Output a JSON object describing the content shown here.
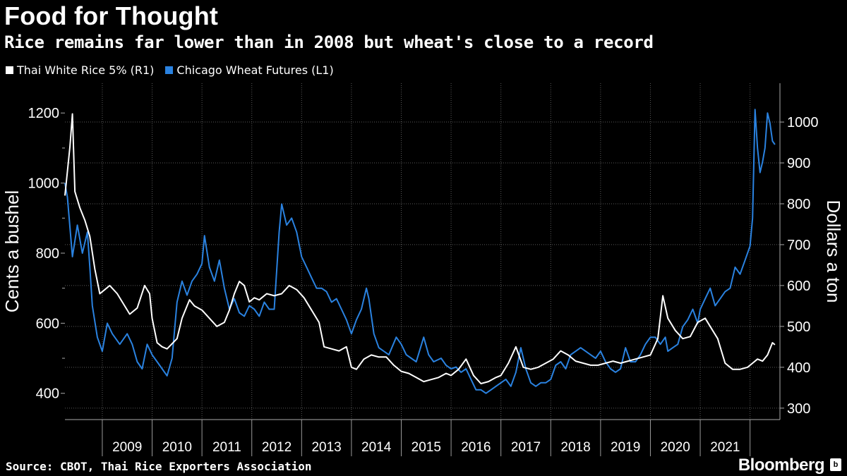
{
  "header": {
    "title": "Food for Thought",
    "subtitle": "Rice remains far lower than in 2008 but wheat's close to a record"
  },
  "footer": {
    "source": "Source: CBOT, Thai Rice Exporters Association",
    "brand": "Bloomberg"
  },
  "colors": {
    "background": "#000000",
    "rice": "#ffffff",
    "wheat": "#2a82e0",
    "grid": "#5a5a5a"
  },
  "chart_data": {
    "type": "line",
    "title": "Food for Thought",
    "subtitle": "Rice remains far lower than in 2008 but wheat's close to a record",
    "x_domain": [
      2008.25,
      2022.6
    ],
    "x_ticks": [
      "2009",
      "2010",
      "2011",
      "2012",
      "2013",
      "2014",
      "2015",
      "2016",
      "2017",
      "2018",
      "2019",
      "2020",
      "2021"
    ],
    "left_axis": {
      "label": "Cents a bushel",
      "range": [
        325,
        1285
      ],
      "ticks": [
        400,
        600,
        800,
        1000,
        1200
      ]
    },
    "right_axis": {
      "label": "Dollars a ton",
      "range": [
        272,
        1095
      ],
      "ticks": [
        300,
        400,
        500,
        600,
        700,
        800,
        900,
        1000
      ]
    },
    "legend": [
      {
        "name": "Thai White Rice 5% (R1)",
        "color": "#ffffff"
      },
      {
        "name": "Chicago Wheat Futures (L1)",
        "color": "#2a82e0"
      }
    ],
    "series": [
      {
        "name": "Thai White Rice 5% (R1)",
        "axis": "right",
        "color": "#ffffff",
        "points": [
          [
            2008.25,
            820
          ],
          [
            2008.35,
            940
          ],
          [
            2008.4,
            1020
          ],
          [
            2008.45,
            830
          ],
          [
            2008.55,
            790
          ],
          [
            2008.65,
            760
          ],
          [
            2008.75,
            720
          ],
          [
            2008.85,
            640
          ],
          [
            2008.95,
            580
          ],
          [
            2009.05,
            590
          ],
          [
            2009.15,
            600
          ],
          [
            2009.3,
            580
          ],
          [
            2009.45,
            550
          ],
          [
            2009.55,
            530
          ],
          [
            2009.7,
            545
          ],
          [
            2009.85,
            600
          ],
          [
            2009.95,
            580
          ],
          [
            2010.0,
            520
          ],
          [
            2010.1,
            460
          ],
          [
            2010.2,
            450
          ],
          [
            2010.3,
            445
          ],
          [
            2010.5,
            470
          ],
          [
            2010.6,
            520
          ],
          [
            2010.75,
            565
          ],
          [
            2010.85,
            550
          ],
          [
            2011.0,
            540
          ],
          [
            2011.15,
            520
          ],
          [
            2011.3,
            500
          ],
          [
            2011.45,
            510
          ],
          [
            2011.55,
            540
          ],
          [
            2011.65,
            580
          ],
          [
            2011.75,
            610
          ],
          [
            2011.85,
            600
          ],
          [
            2011.95,
            560
          ],
          [
            2012.05,
            570
          ],
          [
            2012.15,
            565
          ],
          [
            2012.3,
            580
          ],
          [
            2012.45,
            575
          ],
          [
            2012.6,
            580
          ],
          [
            2012.75,
            600
          ],
          [
            2012.9,
            590
          ],
          [
            2013.05,
            570
          ],
          [
            2013.2,
            540
          ],
          [
            2013.35,
            510
          ],
          [
            2013.45,
            450
          ],
          [
            2013.6,
            445
          ],
          [
            2013.75,
            440
          ],
          [
            2013.9,
            450
          ],
          [
            2014.0,
            400
          ],
          [
            2014.1,
            395
          ],
          [
            2014.25,
            420
          ],
          [
            2014.4,
            430
          ],
          [
            2014.55,
            425
          ],
          [
            2014.7,
            425
          ],
          [
            2014.85,
            405
          ],
          [
            2015.0,
            390
          ],
          [
            2015.15,
            385
          ],
          [
            2015.3,
            375
          ],
          [
            2015.45,
            365
          ],
          [
            2015.6,
            370
          ],
          [
            2015.75,
            375
          ],
          [
            2015.9,
            385
          ],
          [
            2016.0,
            380
          ],
          [
            2016.15,
            395
          ],
          [
            2016.3,
            420
          ],
          [
            2016.45,
            380
          ],
          [
            2016.6,
            360
          ],
          [
            2016.75,
            365
          ],
          [
            2016.9,
            375
          ],
          [
            2017.0,
            380
          ],
          [
            2017.15,
            410
          ],
          [
            2017.3,
            450
          ],
          [
            2017.45,
            400
          ],
          [
            2017.6,
            395
          ],
          [
            2017.75,
            400
          ],
          [
            2017.9,
            410
          ],
          [
            2018.05,
            420
          ],
          [
            2018.2,
            440
          ],
          [
            2018.35,
            430
          ],
          [
            2018.5,
            415
          ],
          [
            2018.65,
            410
          ],
          [
            2018.8,
            405
          ],
          [
            2018.95,
            405
          ],
          [
            2019.1,
            410
          ],
          [
            2019.25,
            415
          ],
          [
            2019.4,
            410
          ],
          [
            2019.55,
            415
          ],
          [
            2019.7,
            420
          ],
          [
            2019.85,
            425
          ],
          [
            2020.0,
            430
          ],
          [
            2020.15,
            470
          ],
          [
            2020.25,
            575
          ],
          [
            2020.35,
            520
          ],
          [
            2020.5,
            490
          ],
          [
            2020.65,
            470
          ],
          [
            2020.8,
            475
          ],
          [
            2020.95,
            510
          ],
          [
            2021.1,
            520
          ],
          [
            2021.25,
            490
          ],
          [
            2021.35,
            470
          ],
          [
            2021.5,
            410
          ],
          [
            2021.65,
            395
          ],
          [
            2021.8,
            395
          ],
          [
            2021.95,
            400
          ],
          [
            2022.05,
            410
          ],
          [
            2022.15,
            420
          ],
          [
            2022.25,
            415
          ],
          [
            2022.35,
            430
          ],
          [
            2022.45,
            460
          ],
          [
            2022.5,
            455
          ]
        ]
      },
      {
        "name": "Chicago Wheat Futures (L1)",
        "axis": "left",
        "color": "#2a82e0",
        "points": [
          [
            2008.25,
            1000
          ],
          [
            2008.3,
            960
          ],
          [
            2008.4,
            790
          ],
          [
            2008.5,
            880
          ],
          [
            2008.6,
            800
          ],
          [
            2008.7,
            860
          ],
          [
            2008.75,
            760
          ],
          [
            2008.8,
            650
          ],
          [
            2008.9,
            560
          ],
          [
            2009.0,
            520
          ],
          [
            2009.1,
            600
          ],
          [
            2009.2,
            570
          ],
          [
            2009.35,
            540
          ],
          [
            2009.5,
            570
          ],
          [
            2009.6,
            540
          ],
          [
            2009.7,
            490
          ],
          [
            2009.8,
            470
          ],
          [
            2009.9,
            540
          ],
          [
            2010.0,
            510
          ],
          [
            2010.1,
            490
          ],
          [
            2010.2,
            470
          ],
          [
            2010.3,
            450
          ],
          [
            2010.4,
            500
          ],
          [
            2010.5,
            660
          ],
          [
            2010.6,
            720
          ],
          [
            2010.7,
            680
          ],
          [
            2010.8,
            720
          ],
          [
            2010.9,
            740
          ],
          [
            2011.0,
            770
          ],
          [
            2011.05,
            850
          ],
          [
            2011.15,
            760
          ],
          [
            2011.25,
            720
          ],
          [
            2011.35,
            780
          ],
          [
            2011.45,
            700
          ],
          [
            2011.55,
            640
          ],
          [
            2011.65,
            670
          ],
          [
            2011.75,
            630
          ],
          [
            2011.85,
            620
          ],
          [
            2011.95,
            650
          ],
          [
            2012.05,
            640
          ],
          [
            2012.15,
            620
          ],
          [
            2012.25,
            660
          ],
          [
            2012.35,
            640
          ],
          [
            2012.45,
            640
          ],
          [
            2012.55,
            860
          ],
          [
            2012.6,
            940
          ],
          [
            2012.7,
            880
          ],
          [
            2012.8,
            900
          ],
          [
            2012.9,
            860
          ],
          [
            2013.0,
            790
          ],
          [
            2013.1,
            760
          ],
          [
            2013.2,
            730
          ],
          [
            2013.3,
            700
          ],
          [
            2013.4,
            700
          ],
          [
            2013.5,
            690
          ],
          [
            2013.6,
            660
          ],
          [
            2013.7,
            670
          ],
          [
            2013.8,
            640
          ],
          [
            2013.9,
            610
          ],
          [
            2014.0,
            570
          ],
          [
            2014.1,
            610
          ],
          [
            2014.2,
            640
          ],
          [
            2014.3,
            700
          ],
          [
            2014.35,
            670
          ],
          [
            2014.45,
            570
          ],
          [
            2014.55,
            530
          ],
          [
            2014.65,
            520
          ],
          [
            2014.75,
            510
          ],
          [
            2014.9,
            560
          ],
          [
            2015.0,
            540
          ],
          [
            2015.1,
            510
          ],
          [
            2015.2,
            500
          ],
          [
            2015.3,
            490
          ],
          [
            2015.45,
            560
          ],
          [
            2015.55,
            510
          ],
          [
            2015.65,
            490
          ],
          [
            2015.8,
            500
          ],
          [
            2015.9,
            480
          ],
          [
            2016.0,
            470
          ],
          [
            2016.1,
            475
          ],
          [
            2016.2,
            460
          ],
          [
            2016.3,
            470
          ],
          [
            2016.4,
            440
          ],
          [
            2016.5,
            410
          ],
          [
            2016.6,
            410
          ],
          [
            2016.7,
            400
          ],
          [
            2016.8,
            410
          ],
          [
            2016.9,
            420
          ],
          [
            2017.0,
            430
          ],
          [
            2017.1,
            440
          ],
          [
            2017.2,
            420
          ],
          [
            2017.3,
            460
          ],
          [
            2017.4,
            530
          ],
          [
            2017.5,
            470
          ],
          [
            2017.6,
            430
          ],
          [
            2017.7,
            420
          ],
          [
            2017.8,
            430
          ],
          [
            2017.9,
            430
          ],
          [
            2018.0,
            440
          ],
          [
            2018.1,
            480
          ],
          [
            2018.2,
            490
          ],
          [
            2018.3,
            470
          ],
          [
            2018.4,
            510
          ],
          [
            2018.5,
            520
          ],
          [
            2018.6,
            530
          ],
          [
            2018.7,
            520
          ],
          [
            2018.8,
            510
          ],
          [
            2018.9,
            500
          ],
          [
            2019.0,
            520
          ],
          [
            2019.1,
            490
          ],
          [
            2019.2,
            470
          ],
          [
            2019.3,
            460
          ],
          [
            2019.4,
            470
          ],
          [
            2019.5,
            530
          ],
          [
            2019.6,
            490
          ],
          [
            2019.7,
            490
          ],
          [
            2019.8,
            510
          ],
          [
            2019.9,
            540
          ],
          [
            2020.0,
            560
          ],
          [
            2020.1,
            560
          ],
          [
            2020.2,
            540
          ],
          [
            2020.3,
            560
          ],
          [
            2020.35,
            520
          ],
          [
            2020.45,
            530
          ],
          [
            2020.55,
            540
          ],
          [
            2020.65,
            590
          ],
          [
            2020.75,
            610
          ],
          [
            2020.85,
            640
          ],
          [
            2020.95,
            600
          ],
          [
            2021.0,
            640
          ],
          [
            2021.1,
            670
          ],
          [
            2021.2,
            700
          ],
          [
            2021.3,
            650
          ],
          [
            2021.4,
            670
          ],
          [
            2021.5,
            690
          ],
          [
            2021.6,
            700
          ],
          [
            2021.7,
            760
          ],
          [
            2021.8,
            740
          ],
          [
            2021.9,
            780
          ],
          [
            2022.0,
            820
          ],
          [
            2022.05,
            900
          ],
          [
            2022.1,
            1210
          ],
          [
            2022.15,
            1100
          ],
          [
            2022.2,
            1030
          ],
          [
            2022.25,
            1060
          ],
          [
            2022.3,
            1100
          ],
          [
            2022.35,
            1200
          ],
          [
            2022.4,
            1170
          ],
          [
            2022.45,
            1120
          ],
          [
            2022.5,
            1110
          ]
        ]
      }
    ]
  }
}
